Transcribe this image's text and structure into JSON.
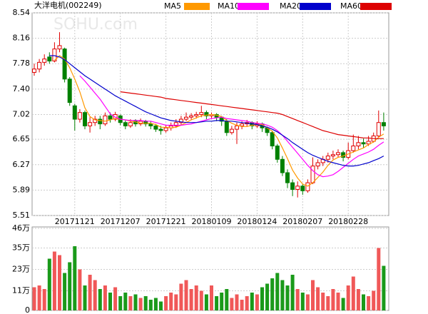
{
  "chart_data": [
    {
      "type": "candlestick",
      "title": "大洋电机(002249)",
      "watermark": "SOHU.com",
      "up_color": "#e00000",
      "down_color": "#008000",
      "grid": true,
      "ylim": [
        5.51,
        8.54
      ],
      "yticks": [
        8.54,
        8.16,
        7.78,
        {
          "value": 7.4,
          "label": "7.40"
        },
        7.02,
        6.65,
        6.27,
        5.89,
        5.51
      ],
      "categories": [
        null,
        null,
        null,
        null,
        null,
        null,
        null,
        null,
        "20171121",
        null,
        null,
        null,
        null,
        null,
        null,
        null,
        null,
        "20171207",
        null,
        null,
        null,
        null,
        null,
        null,
        null,
        null,
        "20171221",
        null,
        null,
        null,
        null,
        null,
        null,
        null,
        null,
        "20180109",
        null,
        null,
        null,
        null,
        null,
        null,
        null,
        null,
        "20180124",
        null,
        null,
        null,
        null,
        null,
        null,
        null,
        null,
        "20180207",
        null,
        null,
        null,
        null,
        null,
        null,
        null,
        null,
        "20180228",
        null,
        null,
        null,
        null,
        null,
        null,
        null
      ],
      "open": [
        7.65,
        7.7,
        7.8,
        7.88,
        7.82,
        8.0,
        8.0,
        7.55,
        7.15,
        6.95,
        7.05,
        6.85,
        6.9,
        6.95,
        6.88,
        7.0,
        6.95,
        7.0,
        6.9,
        6.85,
        6.92,
        6.88,
        6.92,
        6.88,
        6.85,
        6.8,
        6.78,
        6.82,
        6.85,
        6.9,
        6.95,
        6.98,
        7.0,
        7.02,
        7.05,
        7.0,
        7.02,
        6.98,
        6.92,
        6.75,
        6.8,
        6.85,
        6.88,
        6.9,
        6.85,
        6.88,
        6.82,
        6.75,
        6.55,
        6.35,
        6.15,
        6.0,
        5.9,
        5.95,
        5.88,
        6.0,
        6.25,
        6.3,
        6.35,
        6.4,
        6.42,
        6.45,
        6.38,
        6.48,
        6.55,
        6.6,
        6.58,
        6.62,
        6.7,
        6.9
      ],
      "high": [
        7.78,
        7.85,
        7.92,
        7.95,
        8.1,
        8.25,
        8.02,
        7.58,
        7.18,
        7.1,
        7.08,
        6.98,
        7.0,
        7.0,
        7.05,
        7.05,
        7.06,
        7.02,
        6.93,
        6.95,
        6.95,
        6.96,
        6.94,
        6.92,
        6.88,
        6.85,
        6.86,
        6.9,
        6.95,
        7.0,
        7.05,
        7.04,
        7.06,
        7.15,
        7.08,
        7.05,
        7.04,
        7.0,
        6.95,
        6.85,
        6.9,
        6.92,
        6.94,
        6.92,
        6.92,
        6.9,
        6.84,
        6.78,
        6.58,
        6.4,
        6.2,
        6.05,
        6.02,
        5.98,
        6.05,
        6.38,
        6.35,
        6.4,
        6.45,
        6.48,
        6.5,
        6.48,
        6.6,
        6.72,
        6.7,
        6.66,
        6.7,
        6.75,
        7.08,
        7.05
      ],
      "low": [
        7.6,
        7.65,
        7.75,
        7.78,
        7.8,
        7.95,
        7.5,
        7.15,
        6.78,
        6.9,
        6.8,
        6.75,
        6.85,
        6.8,
        6.85,
        6.9,
        6.92,
        6.86,
        6.8,
        6.82,
        6.84,
        6.85,
        6.84,
        6.8,
        6.76,
        6.72,
        6.75,
        6.78,
        6.82,
        6.86,
        6.92,
        6.94,
        6.96,
        6.98,
        6.95,
        6.96,
        6.92,
        6.85,
        6.7,
        6.72,
        6.58,
        6.8,
        6.84,
        6.8,
        6.82,
        6.76,
        6.7,
        6.5,
        6.3,
        6.1,
        5.92,
        5.8,
        5.78,
        5.82,
        5.85,
        5.98,
        6.2,
        6.25,
        6.3,
        6.35,
        6.38,
        6.32,
        6.35,
        6.45,
        6.5,
        6.52,
        6.55,
        6.6,
        6.68,
        6.78
      ],
      "close": [
        7.7,
        7.8,
        7.85,
        7.82,
        8.0,
        8.05,
        7.55,
        7.2,
        6.95,
        7.05,
        6.85,
        6.9,
        6.95,
        6.88,
        7.0,
        6.95,
        7.02,
        6.9,
        6.85,
        6.9,
        6.88,
        6.92,
        6.88,
        6.85,
        6.8,
        6.78,
        6.82,
        6.85,
        6.9,
        6.95,
        6.98,
        7.0,
        7.02,
        7.05,
        7.0,
        7.02,
        6.98,
        6.92,
        6.75,
        6.8,
        6.85,
        6.88,
        6.9,
        6.85,
        6.88,
        6.82,
        6.75,
        6.55,
        6.35,
        6.15,
        6.0,
        5.9,
        5.95,
        5.88,
        6.0,
        6.25,
        6.3,
        6.35,
        6.4,
        6.42,
        6.45,
        6.38,
        6.48,
        6.55,
        6.6,
        6.58,
        6.62,
        6.7,
        6.9,
        6.85
      ],
      "series": [
        {
          "name": "MA5",
          "color": "#ff9900",
          "values": [
            null,
            null,
            null,
            null,
            7.83,
            7.9,
            7.85,
            7.72,
            7.55,
            7.36,
            7.12,
            6.99,
            6.94,
            6.93,
            6.92,
            6.94,
            6.96,
            6.95,
            6.94,
            6.92,
            6.91,
            6.89,
            6.89,
            6.89,
            6.87,
            6.83,
            6.83,
            6.82,
            6.83,
            6.86,
            6.9,
            6.94,
            6.97,
            7.0,
            7.01,
            7.02,
            7.01,
            6.99,
            6.93,
            6.89,
            6.86,
            6.84,
            6.84,
            6.86,
            6.87,
            6.87,
            6.82,
            6.77,
            6.67,
            6.52,
            6.36,
            6.19,
            6.07,
            5.98,
            5.95,
            6.0,
            6.08,
            6.16,
            6.26,
            6.34,
            6.38,
            6.4,
            6.43,
            6.46,
            6.49,
            6.52,
            6.57,
            6.61,
            6.68,
            6.73
          ]
        },
        {
          "name": "MA10",
          "color": "#ff00ff",
          "values": [
            null,
            null,
            null,
            null,
            null,
            null,
            null,
            null,
            null,
            7.6,
            7.52,
            7.43,
            7.34,
            7.25,
            7.14,
            7.03,
            6.98,
            6.95,
            6.94,
            6.93,
            6.93,
            6.93,
            6.92,
            6.92,
            6.9,
            6.88,
            6.86,
            6.86,
            6.86,
            6.86,
            6.87,
            6.88,
            6.9,
            6.92,
            6.94,
            6.96,
            6.97,
            6.98,
            6.96,
            6.95,
            6.94,
            6.93,
            6.92,
            6.9,
            6.89,
            6.88,
            6.86,
            6.83,
            6.78,
            6.71,
            6.62,
            6.53,
            6.44,
            6.35,
            6.26,
            6.18,
            6.12,
            6.09,
            6.1,
            6.12,
            6.17,
            6.23,
            6.29,
            6.35,
            6.4,
            6.43,
            6.46,
            6.5,
            6.56,
            6.61
          ]
        },
        {
          "name": "MA20",
          "color": "#0000cc",
          "values": [
            null,
            null,
            null,
            7.9,
            7.9,
            7.88,
            7.84,
            7.78,
            7.72,
            7.66,
            7.6,
            7.55,
            7.5,
            7.45,
            7.4,
            7.35,
            7.3,
            7.26,
            7.22,
            7.18,
            7.14,
            7.1,
            7.06,
            7.03,
            7.0,
            6.97,
            6.95,
            6.93,
            6.92,
            6.91,
            6.9,
            6.9,
            6.9,
            6.91,
            6.92,
            6.92,
            6.93,
            6.93,
            6.92,
            6.92,
            6.91,
            6.9,
            6.89,
            6.88,
            6.87,
            6.85,
            6.83,
            6.8,
            6.76,
            6.71,
            6.66,
            6.6,
            6.55,
            6.5,
            6.45,
            6.41,
            6.38,
            6.35,
            6.32,
            6.3,
            6.28,
            6.26,
            6.25,
            6.25,
            6.26,
            6.28,
            6.3,
            6.33,
            6.36,
            6.4
          ]
        },
        {
          "name": "MA60",
          "color": "#dd0000",
          "values": [
            null,
            null,
            null,
            null,
            null,
            null,
            null,
            null,
            null,
            null,
            null,
            null,
            null,
            null,
            null,
            null,
            null,
            7.36,
            7.35,
            7.34,
            7.33,
            7.32,
            7.31,
            7.3,
            7.29,
            7.28,
            7.26,
            7.25,
            7.24,
            7.23,
            7.22,
            7.21,
            7.2,
            7.19,
            7.18,
            7.17,
            7.16,
            7.15,
            7.14,
            7.13,
            7.12,
            7.11,
            7.1,
            7.09,
            7.08,
            7.07,
            7.06,
            7.05,
            7.04,
            7.02,
            6.99,
            6.96,
            6.93,
            6.9,
            6.87,
            6.84,
            6.81,
            6.78,
            6.76,
            6.74,
            6.72,
            6.71,
            6.7,
            6.69,
            6.68,
            6.67,
            6.67,
            6.66,
            6.66,
            6.66
          ]
        }
      ]
    },
    {
      "type": "bar",
      "up_color": "#f05858",
      "down_color": "#1a9a1a",
      "ylim": [
        0,
        46
      ],
      "yticks": [
        {
          "value": 46,
          "label": "46万"
        },
        {
          "value": 35,
          "label": "35万"
        },
        {
          "value": 23,
          "label": "23万"
        },
        {
          "value": 11,
          "label": "11万"
        },
        0
      ],
      "values": [
        13,
        14,
        12,
        29,
        33,
        31,
        21,
        27,
        36,
        23,
        14,
        20,
        17,
        12,
        14,
        10,
        13,
        8,
        10,
        8,
        9,
        7,
        8,
        6,
        7,
        5,
        8,
        10,
        9,
        15,
        17,
        12,
        14,
        11,
        9,
        14,
        8,
        10,
        12,
        7,
        9,
        6,
        8,
        10,
        9,
        13,
        15,
        18,
        21,
        17,
        14,
        20,
        12,
        10,
        9,
        17,
        13,
        10,
        8,
        12,
        10,
        7,
        14,
        19,
        12,
        9,
        8,
        11,
        35,
        25
      ]
    }
  ]
}
